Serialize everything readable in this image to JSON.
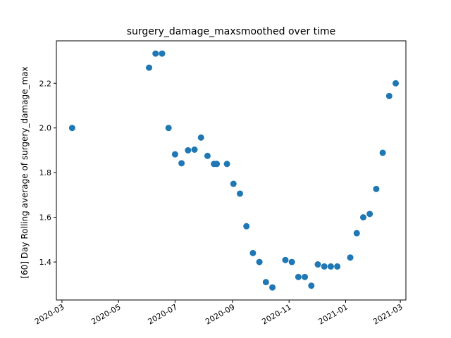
{
  "chart_data": {
    "type": "scatter",
    "title": "surgery_damage_maxsmoothed over time",
    "xlabel": "",
    "ylabel": "[60] Day Rolling average of surgery_damage_max",
    "x_ticks": [
      "2020-03",
      "2020-05",
      "2020-07",
      "2020-09",
      "2020-11",
      "2021-01",
      "2021-03"
    ],
    "y_ticks": [
      "1.4",
      "1.6",
      "1.8",
      "2.0",
      "2.2"
    ],
    "xlim": [
      "2020-02-24",
      "2021-03-07"
    ],
    "ylim": [
      1.23,
      2.39
    ],
    "grid": false,
    "color": "#1f77b4",
    "points": [
      {
        "x": "2020-03-12",
        "y": 2.0
      },
      {
        "x": "2020-06-03",
        "y": 2.27
      },
      {
        "x": "2020-06-10",
        "y": 2.333
      },
      {
        "x": "2020-06-17",
        "y": 2.333
      },
      {
        "x": "2020-06-24",
        "y": 2.0
      },
      {
        "x": "2020-07-01",
        "y": 1.882
      },
      {
        "x": "2020-07-08",
        "y": 1.842
      },
      {
        "x": "2020-07-15",
        "y": 1.9
      },
      {
        "x": "2020-07-22",
        "y": 1.903
      },
      {
        "x": "2020-07-29",
        "y": 1.957
      },
      {
        "x": "2020-08-05",
        "y": 1.875
      },
      {
        "x": "2020-08-12",
        "y": 1.839
      },
      {
        "x": "2020-08-15",
        "y": 1.839
      },
      {
        "x": "2020-08-26",
        "y": 1.839
      },
      {
        "x": "2020-09-02",
        "y": 1.75
      },
      {
        "x": "2020-09-09",
        "y": 1.706
      },
      {
        "x": "2020-09-16",
        "y": 1.56
      },
      {
        "x": "2020-09-23",
        "y": 1.44
      },
      {
        "x": "2020-09-30",
        "y": 1.4
      },
      {
        "x": "2020-10-07",
        "y": 1.31
      },
      {
        "x": "2020-10-14",
        "y": 1.286
      },
      {
        "x": "2020-10-28",
        "y": 1.409
      },
      {
        "x": "2020-11-04",
        "y": 1.4
      },
      {
        "x": "2020-11-11",
        "y": 1.333
      },
      {
        "x": "2020-11-18",
        "y": 1.333
      },
      {
        "x": "2020-11-25",
        "y": 1.294
      },
      {
        "x": "2020-12-02",
        "y": 1.389
      },
      {
        "x": "2020-12-09",
        "y": 1.38
      },
      {
        "x": "2020-12-16",
        "y": 1.38
      },
      {
        "x": "2020-12-23",
        "y": 1.38
      },
      {
        "x": "2021-01-06",
        "y": 1.42
      },
      {
        "x": "2021-01-13",
        "y": 1.529
      },
      {
        "x": "2021-01-20",
        "y": 1.6
      },
      {
        "x": "2021-01-27",
        "y": 1.615
      },
      {
        "x": "2021-02-03",
        "y": 1.727
      },
      {
        "x": "2021-02-10",
        "y": 1.889
      },
      {
        "x": "2021-02-17",
        "y": 2.143
      },
      {
        "x": "2021-02-24",
        "y": 2.2
      }
    ]
  }
}
